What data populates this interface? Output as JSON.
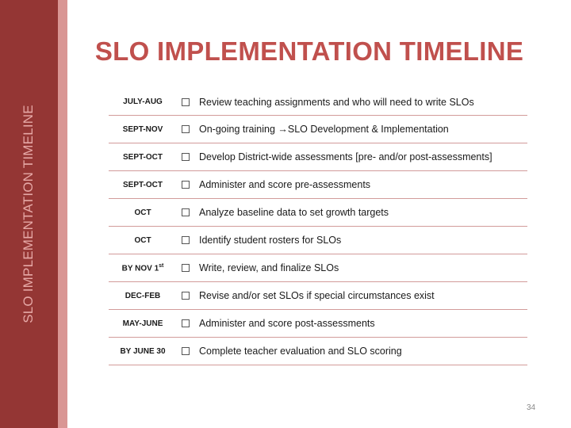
{
  "sidebar": {
    "title": "SLO IMPLEMENTATION TIMELINE"
  },
  "title": "SLO IMPLEMENTATION TIMELINE",
  "rows": [
    {
      "date": "JULY-AUG",
      "task": "Review teaching assignments and who will need to write SLOs"
    },
    {
      "date": "SEPT-NOV",
      "task": "On-going training →SLO Development & Implementation"
    },
    {
      "date": "SEPT-OCT",
      "task": "Develop District-wide assessments [pre- and/or post-assessments]"
    },
    {
      "date": "SEPT-OCT",
      "task": "Administer and score pre-assessments"
    },
    {
      "date": "OCT",
      "task": "Analyze baseline data to set growth targets"
    },
    {
      "date": "OCT",
      "task": "Identify student rosters for SLOs"
    },
    {
      "date": "BY NOV 1",
      "date_sup": "st",
      "task": "Write, review, and finalize SLOs"
    },
    {
      "date": "DEC-FEB",
      "task": "Revise and/or set SLOs if special circumstances exist"
    },
    {
      "date": "MAY-JUNE",
      "task": "Administer and score post-assessments"
    },
    {
      "date": "BY JUNE 30",
      "task": "Complete teacher evaluation and SLO scoring"
    }
  ],
  "page_number": "34",
  "colors": {
    "sidebar": "#943634",
    "strip": "#d99694",
    "title": "#c0504d",
    "divider": "#d29b9a"
  }
}
